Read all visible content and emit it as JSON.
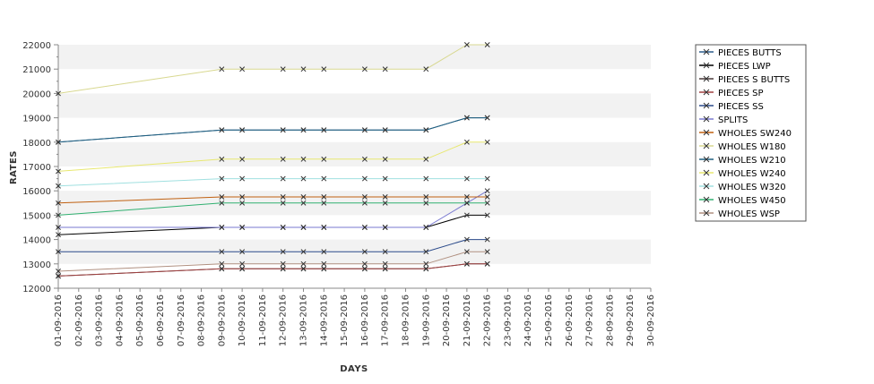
{
  "chart_data": {
    "type": "line",
    "title": "",
    "xlabel": "DAYS",
    "ylabel": "RATES",
    "ylim": [
      12000,
      22000
    ],
    "ytick_step": 1000,
    "grid": "alternating horizontal bands",
    "legend_position": "right",
    "x_ticks": [
      "01-09-2016",
      "02-09-2016",
      "03-09-2016",
      "04-09-2016",
      "05-09-2016",
      "06-09-2016",
      "07-09-2016",
      "08-09-2016",
      "09-09-2016",
      "10-09-2016",
      "11-09-2016",
      "12-09-2016",
      "13-09-2016",
      "14-09-2016",
      "15-09-2016",
      "16-09-2016",
      "17-09-2016",
      "18-09-2016",
      "19-09-2016",
      "20-09-2016",
      "21-09-2016",
      "22-09-2016",
      "23-09-2016",
      "24-09-2016",
      "25-09-2016",
      "26-09-2016",
      "27-09-2016",
      "28-09-2016",
      "29-09-2016",
      "30-09-2016"
    ],
    "dates": [
      "01-09-2016",
      "09-09-2016",
      "10-09-2016",
      "12-09-2016",
      "13-09-2016",
      "14-09-2016",
      "16-09-2016",
      "17-09-2016",
      "19-09-2016",
      "21-09-2016",
      "22-09-2016"
    ],
    "series": [
      {
        "name": "PIECES BUTTS",
        "color": "#2b5c8a",
        "values": [
          18000,
          18500,
          18500,
          18500,
          18500,
          18500,
          18500,
          18500,
          18500,
          19000,
          19000
        ]
      },
      {
        "name": "PIECES LWP",
        "color": "#000000",
        "values": [
          14200,
          14500,
          14500,
          14500,
          14500,
          14500,
          14500,
          14500,
          14500,
          15000,
          15000
        ]
      },
      {
        "name": "PIECES S BUTTS",
        "color": "#4a3a3a",
        "values": [
          12500,
          12800,
          12800,
          12800,
          12800,
          12800,
          12800,
          12800,
          12800,
          13000,
          13000
        ]
      },
      {
        "name": "PIECES SP",
        "color": "#a04040",
        "values": [
          12500,
          12800,
          12800,
          12800,
          12800,
          12800,
          12800,
          12800,
          12800,
          13000,
          13000
        ]
      },
      {
        "name": "PIECES SS",
        "color": "#2a4a8a",
        "values": [
          13500,
          13500,
          13500,
          13500,
          13500,
          13500,
          13500,
          13500,
          13500,
          14000,
          14000
        ]
      },
      {
        "name": "SPLITS",
        "color": "#7a7ad0",
        "values": [
          14500,
          14500,
          14500,
          14500,
          14500,
          14500,
          14500,
          14500,
          14500,
          15500,
          16000
        ]
      },
      {
        "name": "WHOLES SW240",
        "color": "#c06010",
        "values": [
          15500,
          15750,
          15750,
          15750,
          15750,
          15750,
          15750,
          15750,
          15750,
          15750,
          15750
        ]
      },
      {
        "name": "WHOLES W180",
        "color": "#d8d890",
        "values": [
          20000,
          21000,
          21000,
          21000,
          21000,
          21000,
          21000,
          21000,
          21000,
          22000,
          22000
        ]
      },
      {
        "name": "WHOLES W210",
        "color": "#206080",
        "values": [
          18000,
          18500,
          18500,
          18500,
          18500,
          18500,
          18500,
          18500,
          18500,
          19000,
          19000
        ]
      },
      {
        "name": "WHOLES W240",
        "color": "#e8e870",
        "values": [
          16800,
          17300,
          17300,
          17300,
          17300,
          17300,
          17300,
          17300,
          17300,
          18000,
          18000
        ]
      },
      {
        "name": "WHOLES W320",
        "color": "#a0e0e0",
        "values": [
          16200,
          16500,
          16500,
          16500,
          16500,
          16500,
          16500,
          16500,
          16500,
          16500,
          16500
        ]
      },
      {
        "name": "WHOLES W450",
        "color": "#30b070",
        "values": [
          15000,
          15500,
          15500,
          15500,
          15500,
          15500,
          15500,
          15500,
          15500,
          15500,
          15500
        ]
      },
      {
        "name": "WHOLES WSP",
        "color": "#b09080",
        "values": [
          12700,
          13000,
          13000,
          13000,
          13000,
          13000,
          13000,
          13000,
          13000,
          13500,
          13500
        ]
      }
    ]
  }
}
